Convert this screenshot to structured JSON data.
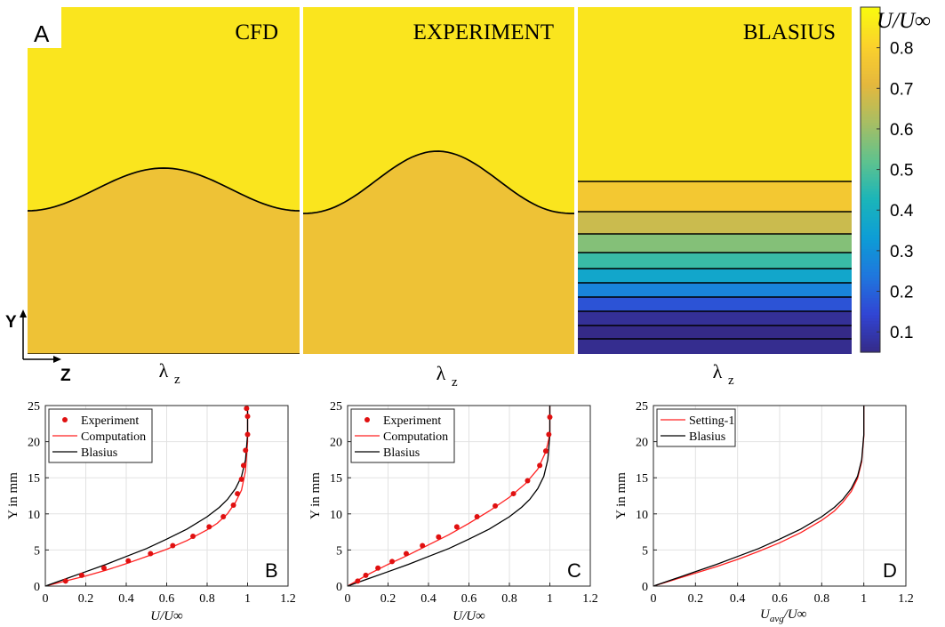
{
  "panel_labels": [
    "A",
    "B",
    "C",
    "D"
  ],
  "contour_titles": [
    "CFD",
    "EXPERIMENT",
    "BLASIUS"
  ],
  "contour_xlabel_symbol": "λ",
  "contour_xlabel_sub": "z",
  "axis_y_arrow_label": "Y",
  "axis_z_arrow_label": "Z",
  "colorbar": {
    "title": "U/U∞",
    "ticks": [
      "0.1",
      "0.2",
      "0.3",
      "0.4",
      "0.5",
      "0.6",
      "0.7",
      "0.8"
    ],
    "tick_values": [
      0.1,
      0.2,
      0.3,
      0.4,
      0.5,
      0.6,
      0.7,
      0.8
    ],
    "range": [
      0.05,
      0.9
    ],
    "colormap": "parula",
    "stops": [
      "#352a87",
      "#3145d4",
      "#1f77dd",
      "#0d9dd6",
      "#1bb5b9",
      "#5fc28e",
      "#a8be63",
      "#e5b83d",
      "#fbd12c",
      "#f9fb0e"
    ]
  },
  "chart_data": [
    {
      "type": "line",
      "panel": "B",
      "xlabel": "U/U∞",
      "ylabel": "Y in mm",
      "xlim": [
        0,
        1.2
      ],
      "ylim": [
        0,
        25
      ],
      "xticks": [
        "0",
        "0.2",
        "0.4",
        "0.6",
        "0.8",
        "1",
        "1.2"
      ],
      "yticks": [
        "0",
        "5",
        "10",
        "15",
        "20",
        "25"
      ],
      "grid": true,
      "legend": "top-left",
      "series": [
        {
          "name": "Experiment",
          "style": "markers",
          "color": "#e01010",
          "x": [
            0.1,
            0.18,
            0.29,
            0.41,
            0.52,
            0.63,
            0.73,
            0.81,
            0.88,
            0.93,
            0.95,
            0.97,
            0.98,
            0.99,
            1.0,
            1.0,
            0.995
          ],
          "y": [
            0.7,
            1.5,
            2.5,
            3.5,
            4.5,
            5.6,
            6.9,
            8.2,
            9.6,
            11.2,
            12.8,
            14.8,
            16.7,
            18.8,
            21.0,
            23.5,
            24.6
          ]
        },
        {
          "name": "Computation",
          "style": "line",
          "color": "#ff2020",
          "x": [
            0,
            0.1,
            0.2,
            0.3,
            0.4,
            0.5,
            0.6,
            0.7,
            0.8,
            0.85,
            0.9,
            0.94,
            0.97,
            0.99,
            1.0,
            1.0
          ],
          "y": [
            0,
            0.7,
            1.4,
            2.2,
            3.1,
            4.1,
            5.1,
            6.3,
            7.8,
            8.7,
            10.0,
            11.6,
            13.3,
            16.0,
            20.0,
            25.0
          ]
        },
        {
          "name": "Blasius",
          "style": "line",
          "color": "#000000",
          "x": [
            0,
            0.1,
            0.2,
            0.3,
            0.4,
            0.5,
            0.6,
            0.7,
            0.8,
            0.86,
            0.9,
            0.94,
            0.97,
            0.99,
            1.0,
            1.0
          ],
          "y": [
            0,
            1.0,
            2.0,
            3.0,
            4.1,
            5.2,
            6.5,
            7.9,
            9.6,
            10.9,
            12.0,
            13.5,
            15.2,
            17.5,
            21.0,
            25.0
          ]
        }
      ]
    },
    {
      "type": "line",
      "panel": "C",
      "xlabel": "U/U∞",
      "ylabel": "Y in mm",
      "xlim": [
        0,
        1.2
      ],
      "ylim": [
        0,
        25
      ],
      "xticks": [
        "0",
        "0.2",
        "0.4",
        "0.6",
        "0.8",
        "1",
        "1.2"
      ],
      "yticks": [
        "0",
        "5",
        "10",
        "15",
        "20",
        "25"
      ],
      "grid": true,
      "legend": "top-left",
      "series": [
        {
          "name": "Experiment",
          "style": "markers",
          "color": "#e01010",
          "x": [
            0.05,
            0.09,
            0.15,
            0.22,
            0.29,
            0.37,
            0.45,
            0.54,
            0.64,
            0.73,
            0.82,
            0.89,
            0.95,
            0.98,
            0.995,
            1.0
          ],
          "y": [
            0.7,
            1.5,
            2.5,
            3.4,
            4.5,
            5.6,
            6.8,
            8.2,
            9.6,
            11.1,
            12.8,
            14.6,
            16.7,
            18.7,
            21.0,
            23.4
          ]
        },
        {
          "name": "Computation",
          "style": "line",
          "color": "#ff2020",
          "x": [
            0,
            0.1,
            0.2,
            0.3,
            0.4,
            0.5,
            0.6,
            0.7,
            0.8,
            0.88,
            0.94,
            0.98,
            1.0,
            1.0
          ],
          "y": [
            0,
            1.6,
            3.0,
            4.3,
            5.7,
            7.1,
            8.7,
            10.4,
            12.3,
            14.2,
            16.2,
            18.6,
            21.0,
            25.0
          ]
        },
        {
          "name": "Blasius",
          "style": "line",
          "color": "#000000",
          "x": [
            0,
            0.1,
            0.2,
            0.3,
            0.4,
            0.5,
            0.6,
            0.7,
            0.8,
            0.86,
            0.9,
            0.94,
            0.97,
            0.99,
            1.0,
            1.0
          ],
          "y": [
            0,
            1.0,
            2.0,
            3.0,
            4.1,
            5.2,
            6.5,
            7.9,
            9.6,
            10.9,
            12.0,
            13.5,
            15.2,
            17.5,
            21.0,
            25.0
          ]
        }
      ]
    },
    {
      "type": "line",
      "panel": "D",
      "xlabel_main": "U",
      "xlabel_sub": "avg",
      "xlabel_rest": "/U∞",
      "ylabel": "Y in mm",
      "xlim": [
        0,
        1.2
      ],
      "ylim": [
        0,
        25
      ],
      "xticks": [
        "0",
        "0.2",
        "0.4",
        "0.6",
        "0.8",
        "1",
        "1.2"
      ],
      "yticks": [
        "0",
        "5",
        "10",
        "15",
        "20",
        "25"
      ],
      "grid": true,
      "legend": "top-left",
      "series": [
        {
          "name": "Setting-1",
          "style": "line",
          "color": "#ff2020",
          "x": [
            0,
            0.1,
            0.2,
            0.3,
            0.4,
            0.5,
            0.6,
            0.7,
            0.8,
            0.86,
            0.9,
            0.94,
            0.97,
            0.99,
            1.0,
            1.0
          ],
          "y": [
            0,
            0.9,
            1.8,
            2.7,
            3.7,
            4.8,
            6.0,
            7.4,
            9.1,
            10.4,
            11.6,
            13.1,
            14.9,
            17.2,
            20.8,
            25.0
          ]
        },
        {
          "name": "Blasius",
          "style": "line",
          "color": "#000000",
          "x": [
            0,
            0.1,
            0.2,
            0.3,
            0.4,
            0.5,
            0.6,
            0.7,
            0.8,
            0.86,
            0.9,
            0.94,
            0.97,
            0.99,
            1.0,
            1.0
          ],
          "y": [
            0,
            1.0,
            2.0,
            3.0,
            4.1,
            5.2,
            6.5,
            7.9,
            9.6,
            10.9,
            12.0,
            13.5,
            15.2,
            17.5,
            21.0,
            25.0
          ]
        }
      ]
    }
  ]
}
